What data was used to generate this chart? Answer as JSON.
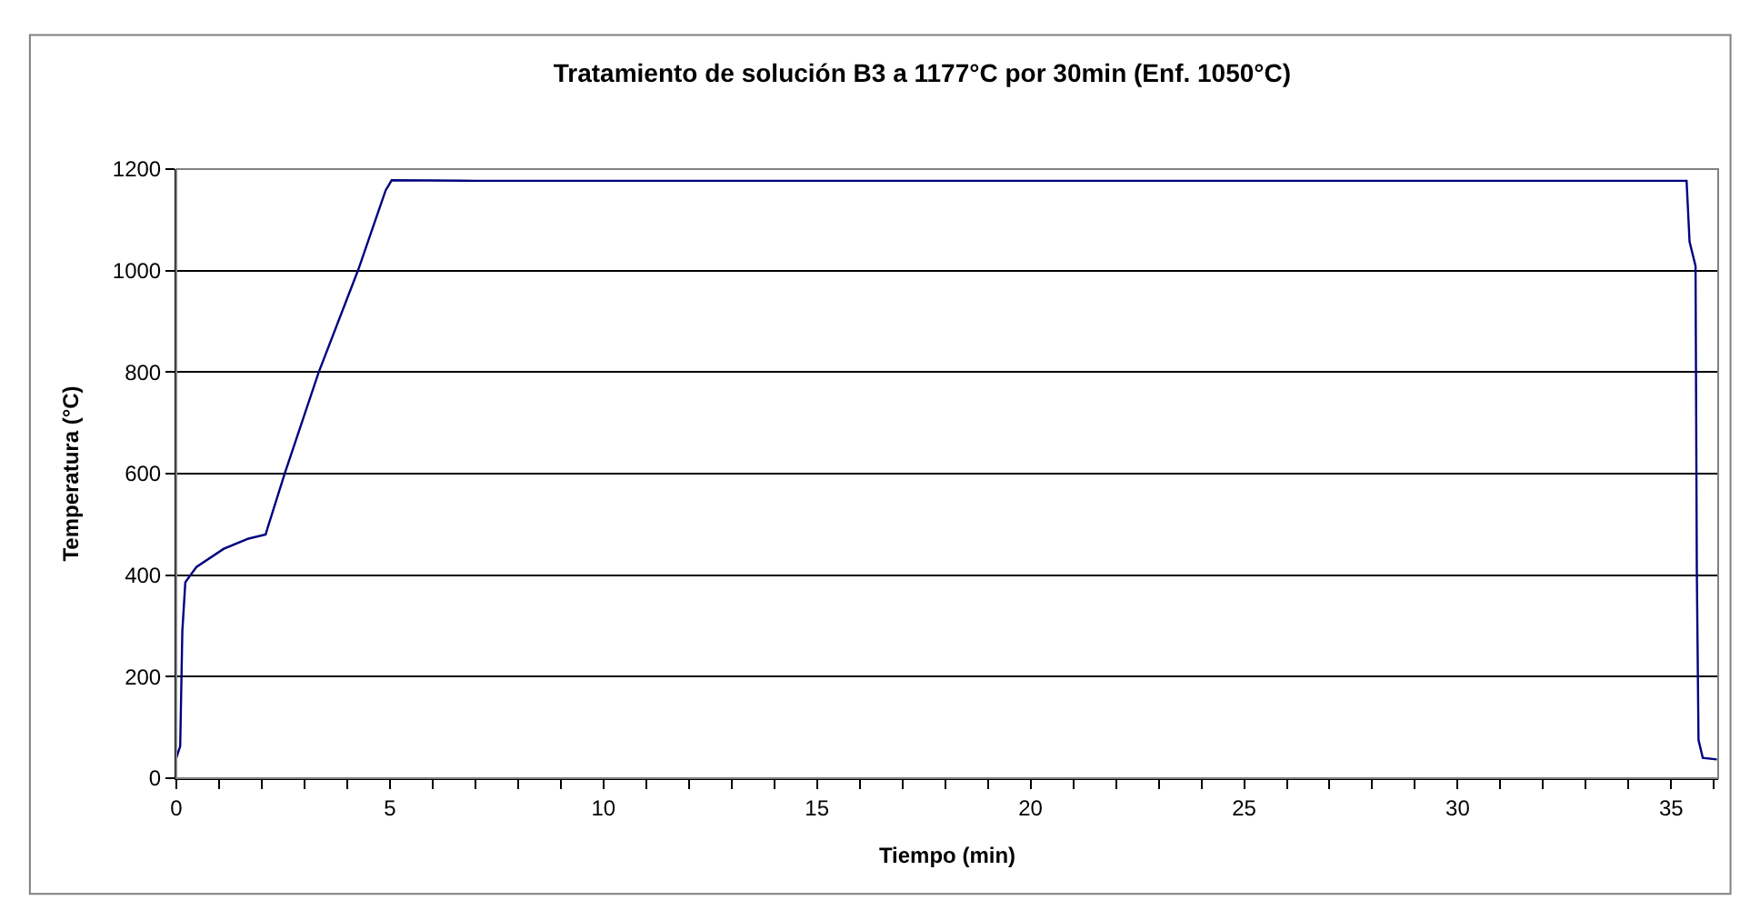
{
  "chart_data": {
    "type": "line",
    "title": "Tratamiento de solución B3 a 1177°C por 30min (Enf. 1050°C)",
    "xlabel": "Tiempo (min)",
    "ylabel": "Temperatura (°C)",
    "series": [
      {
        "color": "#000080",
        "x": [
          0,
          0.09,
          0.14,
          0.21,
          0.33,
          0.47,
          1.11,
          1.69,
          2.09,
          2.14,
          2.54,
          3.33,
          4.26,
          4.9,
          5.04,
          7,
          10,
          15,
          20,
          25,
          30,
          35.36,
          35.43,
          35.57,
          35.6,
          35.64,
          35.74,
          36.07
        ],
        "values": [
          40,
          63,
          290,
          386,
          400,
          416,
          452,
          472,
          480,
          494,
          601,
          799,
          1002,
          1158,
          1178,
          1177,
          1177,
          1177,
          1177,
          1177,
          1177,
          1177,
          1057,
          1009,
          411,
          75,
          40,
          37
        ]
      }
    ],
    "xlim": [
      0,
      36.1
    ],
    "xticks": [
      0,
      {
        "value": 1,
        "label": null
      },
      {
        "value": 2,
        "label": null
      },
      {
        "value": 3,
        "label": null
      },
      {
        "value": 4,
        "label": null
      },
      5,
      {
        "value": 6,
        "label": null
      },
      {
        "value": 7,
        "label": null
      },
      {
        "value": 8,
        "label": null
      },
      {
        "value": 9,
        "label": null
      },
      10,
      {
        "value": 11,
        "label": null
      },
      {
        "value": 12,
        "label": null
      },
      {
        "value": 13,
        "label": null
      },
      {
        "value": 14,
        "label": null
      },
      15,
      {
        "value": 16,
        "label": null
      },
      {
        "value": 17,
        "label": null
      },
      {
        "value": 18,
        "label": null
      },
      {
        "value": 19,
        "label": null
      },
      20,
      {
        "value": 21,
        "label": null
      },
      {
        "value": 22,
        "label": null
      },
      {
        "value": 23,
        "label": null
      },
      {
        "value": 24,
        "label": null
      },
      25,
      {
        "value": 26,
        "label": null
      },
      {
        "value": 27,
        "label": null
      },
      {
        "value": 28,
        "label": null
      },
      {
        "value": 29,
        "label": null
      },
      30,
      {
        "value": 31,
        "label": null
      },
      {
        "value": 32,
        "label": null
      },
      {
        "value": 33,
        "label": null
      },
      {
        "value": 34,
        "label": null
      },
      35,
      {
        "value": 36,
        "label": null
      }
    ],
    "ylim": [
      0,
      1200
    ],
    "yticks": [
      0,
      200,
      400,
      600,
      800,
      1000,
      1200
    ],
    "grid": "y",
    "marker": "none",
    "line_style": "solid"
  }
}
